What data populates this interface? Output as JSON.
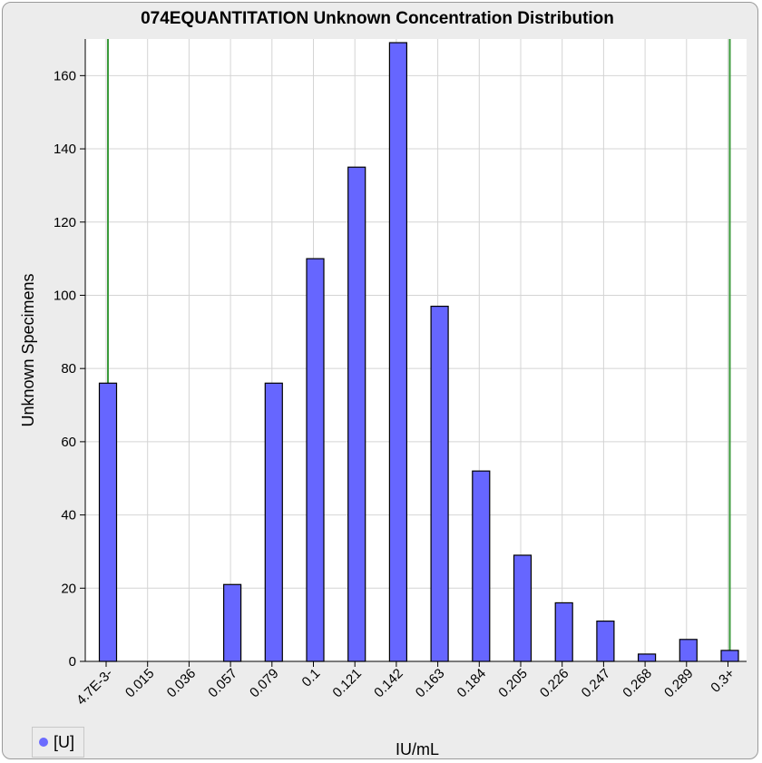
{
  "chart_data": {
    "type": "bar",
    "title": "074EQUANTITATION Unknown Concentration Distribution",
    "xlabel": "IU/mL",
    "ylabel": "Unknown Specimens",
    "categories": [
      "4.7E-3-",
      "0.015",
      "0.036",
      "0.057",
      "0.079",
      "0.1",
      "0.121",
      "0.142",
      "0.163",
      "0.184",
      "0.205",
      "0.226",
      "0.247",
      "0.268",
      "0.289",
      "0.3+"
    ],
    "series": [
      {
        "name": "[U]",
        "values": [
          76,
          0,
          0,
          21,
          76,
          110,
          135,
          169,
          97,
          52,
          29,
          16,
          11,
          2,
          6,
          3
        ]
      }
    ],
    "ylim": [
      0,
      170
    ],
    "yticks": [
      0,
      20,
      40,
      60,
      80,
      100,
      120,
      140,
      160
    ],
    "grid": true,
    "reference_lines_at": [
      "4.7E-3-",
      "0.3+"
    ],
    "legend_placement": "bottom-left",
    "colors": {
      "bar": "#6666ff",
      "reference_line": "#3a9a3a",
      "grid": "#d4d4d4"
    }
  }
}
